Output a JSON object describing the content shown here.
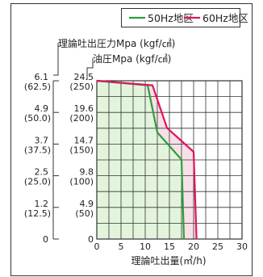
{
  "chart_data": {
    "type": "line",
    "xlabel": "理論吐出量(㎥/h)",
    "ylabel_outer": "理論吐出圧力Mpa (kgf/㎠)",
    "ylabel_inner": "油圧Mpa (kgf/㎠)",
    "xlim": [
      0,
      30
    ],
    "ylim": [
      0,
      24.5
    ],
    "x_ticks": [
      "0",
      "5",
      "10",
      "15",
      "20",
      "25",
      "30"
    ],
    "y_ticks_outer": [
      {
        "mpa": "6.1",
        "kgf": "(62.5)"
      },
      {
        "mpa": "4.9",
        "kgf": "(50.0)"
      },
      {
        "mpa": "3.7",
        "kgf": "(37.5)"
      },
      {
        "mpa": "2.5",
        "kgf": "(25.0)"
      },
      {
        "mpa": "1.2",
        "kgf": "(12.5)"
      },
      {
        "mpa": "0",
        "kgf": ""
      }
    ],
    "y_ticks_inner": [
      {
        "mpa": "24.5",
        "kgf": "(250)"
      },
      {
        "mpa": "19.6",
        "kgf": "(200)"
      },
      {
        "mpa": "14.7",
        "kgf": "(150)"
      },
      {
        "mpa": "9.8",
        "kgf": "(100)"
      },
      {
        "mpa": "4.9",
        "kgf": "(50)"
      },
      {
        "mpa": "0",
        "kgf": ""
      }
    ],
    "grid": true,
    "legend_position": "top",
    "series": [
      {
        "name": "50Hz地区",
        "color": "#2e9e3e",
        "x": [
          0,
          10.5,
          12.5,
          17.5,
          18.0
        ],
        "y": [
          24.5,
          23.8,
          16.5,
          12.3,
          0
        ]
      },
      {
        "name": "60Hz地区",
        "color": "#e0145a",
        "x": [
          0,
          11.5,
          14.5,
          20.0,
          20.6
        ],
        "y": [
          24.5,
          23.8,
          17.2,
          13.5,
          0
        ]
      }
    ],
    "fill_color": "#e3f4dc",
    "between_fill_color": "#f7e0e8"
  }
}
